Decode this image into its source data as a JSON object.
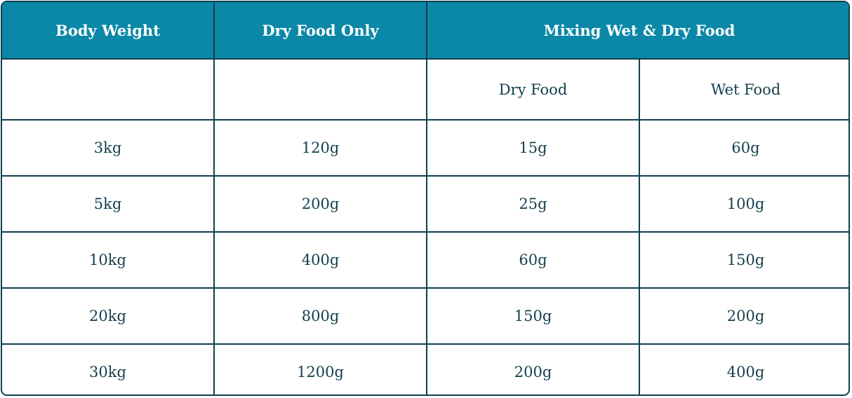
{
  "table": {
    "header": [
      "Body Weight",
      "Dry Food Only",
      "Mixing Wet & Dry Food"
    ],
    "subheader": [
      "Dry Food",
      "Wet Food"
    ],
    "rows": [
      [
        "3kg",
        "120g",
        "15g",
        "60g"
      ],
      [
        "5kg",
        "200g",
        "25g",
        "100g"
      ],
      [
        "10kg",
        "400g",
        "60g",
        "150g"
      ],
      [
        "20kg",
        "800g",
        "150g",
        "200g"
      ],
      [
        "30kg",
        "1200g",
        "200g",
        "400g"
      ]
    ]
  }
}
